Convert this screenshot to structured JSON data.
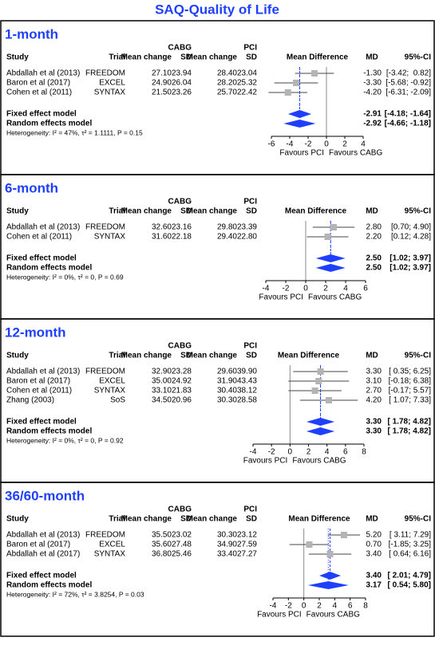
{
  "title": "SAQ-Quality of Life",
  "chart_data": [
    {
      "type": "forest",
      "title": "1-month",
      "group_headers": [
        "CABG",
        "PCI"
      ],
      "columns": [
        "Study",
        "Trial",
        "Mean change",
        "SD",
        "Mean change",
        "SD",
        "Mean Difference",
        "MD",
        "95%-CI"
      ],
      "studies": [
        "Abdallah et al (2013)",
        "Baron et al (2017)",
        "Cohen et al (2011)"
      ],
      "trials": [
        "FREEDOM",
        "EXCEL",
        "SYNTAX"
      ],
      "table": [
        [
          "27.10",
          "23.94",
          "28.40",
          "23.04"
        ],
        [
          "24.90",
          "26.04",
          "28.20",
          "25.32"
        ],
        [
          "21.50",
          "23.26",
          "25.70",
          "22.42"
        ]
      ],
      "values": [
        -1.3,
        -3.3,
        -4.2
      ],
      "value_labels": [
        "-1.30",
        "-3.30",
        "-4.20"
      ],
      "ci": [
        [
          -3.42,
          0.82
        ],
        [
          -5.68,
          -0.92
        ],
        [
          -6.31,
          -2.09
        ]
      ],
      "ci_labels": [
        "[-3.42;  0.82]",
        "[-5.68; -0.92]",
        "[-6.31; -2.09]"
      ],
      "pooled": [
        {
          "name": "Fixed effect model",
          "value": -2.91,
          "value_label": "-2.91",
          "ci": [
            -4.18,
            -1.64
          ],
          "ci_label": "[-4.18; -1.64]"
        },
        {
          "name": "Random effects model",
          "value": -2.92,
          "value_label": "-2.92",
          "ci": [
            -4.66,
            -1.18
          ],
          "ci_label": "[-4.66; -1.18]"
        }
      ],
      "heterogeneity": "Heterogeneity: I² = 47%, τ² = 1.1111, P = 0.15",
      "xlim": [
        -6,
        4
      ],
      "xticks": [
        -6,
        -4,
        -2,
        0,
        2,
        4
      ],
      "xlabels": [
        "Favours PCI",
        "Favours CABG"
      ],
      "color": "#1f3fff",
      "square_color": "#b4b4b4"
    },
    {
      "type": "forest",
      "title": "6-month",
      "group_headers": [
        "CABG",
        "PCI"
      ],
      "columns": [
        "Study",
        "Trial",
        "Mean change",
        "SD",
        "Mean change",
        "SD",
        "Mean Difference",
        "MD",
        "95%-CI"
      ],
      "studies": [
        "Abdallah et al (2013)",
        "Cohen et al (2011)"
      ],
      "trials": [
        "FREEDOM",
        "SYNTAX"
      ],
      "table": [
        [
          "32.60",
          "23.16",
          "29.80",
          "23.39"
        ],
        [
          "31.60",
          "22.18",
          "29.40",
          "22.80"
        ]
      ],
      "values": [
        2.8,
        2.2
      ],
      "value_labels": [
        "2.80",
        "2.20"
      ],
      "ci": [
        [
          0.7,
          4.9
        ],
        [
          0.12,
          4.28
        ]
      ],
      "ci_labels": [
        "[0.70; 4.90]",
        "[0.12; 4.28]"
      ],
      "pooled": [
        {
          "name": "Fixed effect model",
          "value": 2.5,
          "value_label": "2.50",
          "ci": [
            1.02,
            3.97
          ],
          "ci_label": "[1.02; 3.97]"
        },
        {
          "name": "Random effects model",
          "value": 2.5,
          "value_label": "2.50",
          "ci": [
            1.02,
            3.97
          ],
          "ci_label": "[1.02; 3.97]"
        }
      ],
      "heterogeneity": "Heterogeneity: I² = 0%, τ² = 0, P = 0.69",
      "xlim": [
        -4,
        6
      ],
      "xticks": [
        -4,
        -2,
        0,
        2,
        4,
        6
      ],
      "xlabels": [
        "Favours PCI",
        "Favours CABG"
      ],
      "color": "#1f3fff",
      "square_color": "#b4b4b4"
    },
    {
      "type": "forest",
      "title": "12-month",
      "group_headers": [
        "CABG",
        "PCI"
      ],
      "columns": [
        "Study",
        "Trial",
        "Mean change",
        "SD",
        "Mean change",
        "SD",
        "Mean Difference",
        "MD",
        "95%-CI"
      ],
      "studies": [
        "Abdallah et al (2013)",
        "Baron et al (2017)",
        "Cohen et al (2011)",
        "Zhang (2003)"
      ],
      "trials": [
        "FREEDOM",
        "EXCEL",
        "SYNTAX",
        "SoS"
      ],
      "table": [
        [
          "32.90",
          "23.28",
          "29.60",
          "39.90"
        ],
        [
          "35.00",
          "24.92",
          "31.90",
          "43.43"
        ],
        [
          "33.10",
          "21.83",
          "30.40",
          "38.12"
        ],
        [
          "34.50",
          "20.96",
          "30.30",
          "28.58"
        ]
      ],
      "values": [
        3.3,
        3.1,
        2.7,
        4.2
      ],
      "value_labels": [
        "3.30",
        "3.10",
        "2.70",
        "4.20"
      ],
      "ci": [
        [
          0.35,
          6.25
        ],
        [
          -0.18,
          6.38
        ],
        [
          -0.17,
          5.57
        ],
        [
          1.07,
          7.33
        ]
      ],
      "ci_labels": [
        "[ 0.35; 6.25]",
        "[-0.18; 6.38]",
        "[-0.17; 5.57]",
        "[ 1.07; 7.33]"
      ],
      "pooled": [
        {
          "name": "Fixed effect model",
          "value": 3.3,
          "value_label": "3.30",
          "ci": [
            1.78,
            4.82
          ],
          "ci_label": "[ 1.78; 4.82]"
        },
        {
          "name": "Random effects model",
          "value": 3.3,
          "value_label": "3.30",
          "ci": [
            1.78,
            4.82
          ],
          "ci_label": "[ 1.78; 4.82]"
        }
      ],
      "heterogeneity": "Heterogeneity: I² = 0%, τ² = 0, P = 0.92",
      "xlim": [
        -4,
        8
      ],
      "xticks": [
        -4,
        -2,
        0,
        2,
        4,
        6,
        8
      ],
      "xlabels": [
        "Favours PCI",
        "Favours CABG"
      ],
      "color": "#1f3fff",
      "square_color": "#b4b4b4"
    },
    {
      "type": "forest",
      "title": "36/60-month",
      "group_headers": [
        "CABG",
        "PCI"
      ],
      "columns": [
        "Study",
        "Trial",
        "Mean change",
        "SD",
        "Mean change",
        "SD",
        "Mean Difference",
        "MD",
        "95%-CI"
      ],
      "studies": [
        "Abdallah et al (2013)",
        "Baron et al (2017)",
        "Abdallah et al (2017)"
      ],
      "trials": [
        "FREEDOM",
        "EXCEL",
        "SYNTAX"
      ],
      "table": [
        [
          "35.50",
          "23.02",
          "30.30",
          "23.12"
        ],
        [
          "35.60",
          "27.48",
          "34.90",
          "27.59"
        ],
        [
          "36.80",
          "25.46",
          "33.40",
          "27.27"
        ]
      ],
      "values": [
        5.2,
        0.7,
        3.4
      ],
      "value_labels": [
        "5.20",
        "0.70",
        "3.40"
      ],
      "ci": [
        [
          3.11,
          7.29
        ],
        [
          -1.85,
          3.25
        ],
        [
          0.64,
          6.16
        ]
      ],
      "ci_labels": [
        "[ 3.11; 7.29]",
        "[-1.85; 3.25]",
        "[ 0.64; 6.16]"
      ],
      "pooled": [
        {
          "name": "Fixed effect model",
          "value": 3.4,
          "value_label": "3.40",
          "ci": [
            2.01,
            4.79
          ],
          "ci_label": "[ 2.01; 4.79]"
        },
        {
          "name": "Random effects model",
          "value": 3.17,
          "value_label": "3.17",
          "ci": [
            0.54,
            5.8
          ],
          "ci_label": "[ 0.54; 5.80]"
        }
      ],
      "heterogeneity": "Heterogeneity: I² = 72%, τ² = 3.8254, P = 0.03",
      "xlim": [
        -4,
        8
      ],
      "xticks": [
        -4,
        -2,
        0,
        2,
        4,
        6,
        8
      ],
      "xlabels": [
        "Favours PCI",
        "Favours CABG"
      ],
      "color": "#1f3fff",
      "square_color": "#b4b4b4"
    }
  ]
}
